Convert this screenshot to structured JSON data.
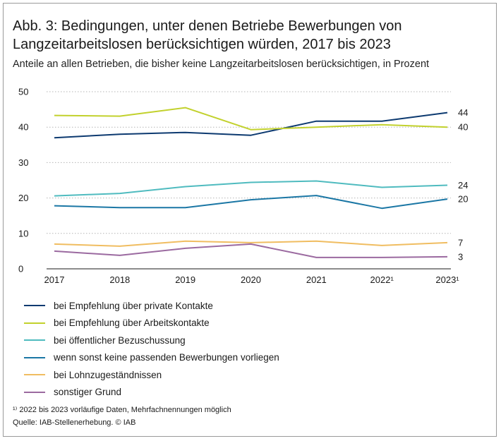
{
  "chart_data": {
    "type": "line",
    "title": "Abb. 3: Bedingungen, unter denen Betriebe Bewerbungen von Langzeitarbeitslosen berücksichtigen würden, 2017 bis 2023",
    "subtitle": "Anteile an allen Betrieben, die bisher keine Langzeitarbeitslosen berücksichtigen, in Prozent",
    "x": [
      "2017",
      "2018",
      "2019",
      "2020",
      "2021",
      "2022¹",
      "2023¹"
    ],
    "ylim": [
      0,
      50
    ],
    "yticks": [
      "0",
      "10",
      "20",
      "30",
      "40",
      "50"
    ],
    "grid": true,
    "legend_position": "bottom",
    "series": [
      {
        "name": "bei Empfehlung über private Kontakte",
        "color": "#0d3a70",
        "values": [
          37,
          38,
          38.5,
          37.7,
          41.7,
          41.7,
          44.1
        ],
        "end_label": "44"
      },
      {
        "name": "bei Empfehlung über Arbeitskontakte",
        "color": "#c2d12d",
        "values": [
          43.3,
          43.1,
          45.5,
          39.3,
          40,
          40.7,
          40
        ],
        "end_label": "40"
      },
      {
        "name": "bei öffentlicher Bezuschussung",
        "color": "#4fbbbf",
        "values": [
          20.6,
          21.3,
          23.2,
          24.4,
          24.8,
          23,
          23.6
        ],
        "end_label": "24"
      },
      {
        "name": "wenn sonst keine passenden Bewerbungen vorliegen",
        "color": "#1b77a5",
        "values": [
          17.8,
          17.3,
          17.3,
          19.5,
          20.7,
          17.1,
          19.7
        ],
        "end_label": "20"
      },
      {
        "name": "bei Lohnzugeständnissen",
        "color": "#f0bd61",
        "values": [
          7,
          6.4,
          7.8,
          7.4,
          7.8,
          6.6,
          7.4
        ],
        "end_label": "7"
      },
      {
        "name": "sonstiger Grund",
        "color": "#9b6aa0",
        "values": [
          5,
          3.8,
          5.8,
          7,
          3.2,
          3.2,
          3.4
        ],
        "end_label": "3"
      }
    ],
    "footnote": "¹⁾ 2022 bis 2023 vorläufige Daten, Mehrfachnennungen möglich",
    "source": "Quelle: IAB-Stellenerhebung. © IAB"
  }
}
